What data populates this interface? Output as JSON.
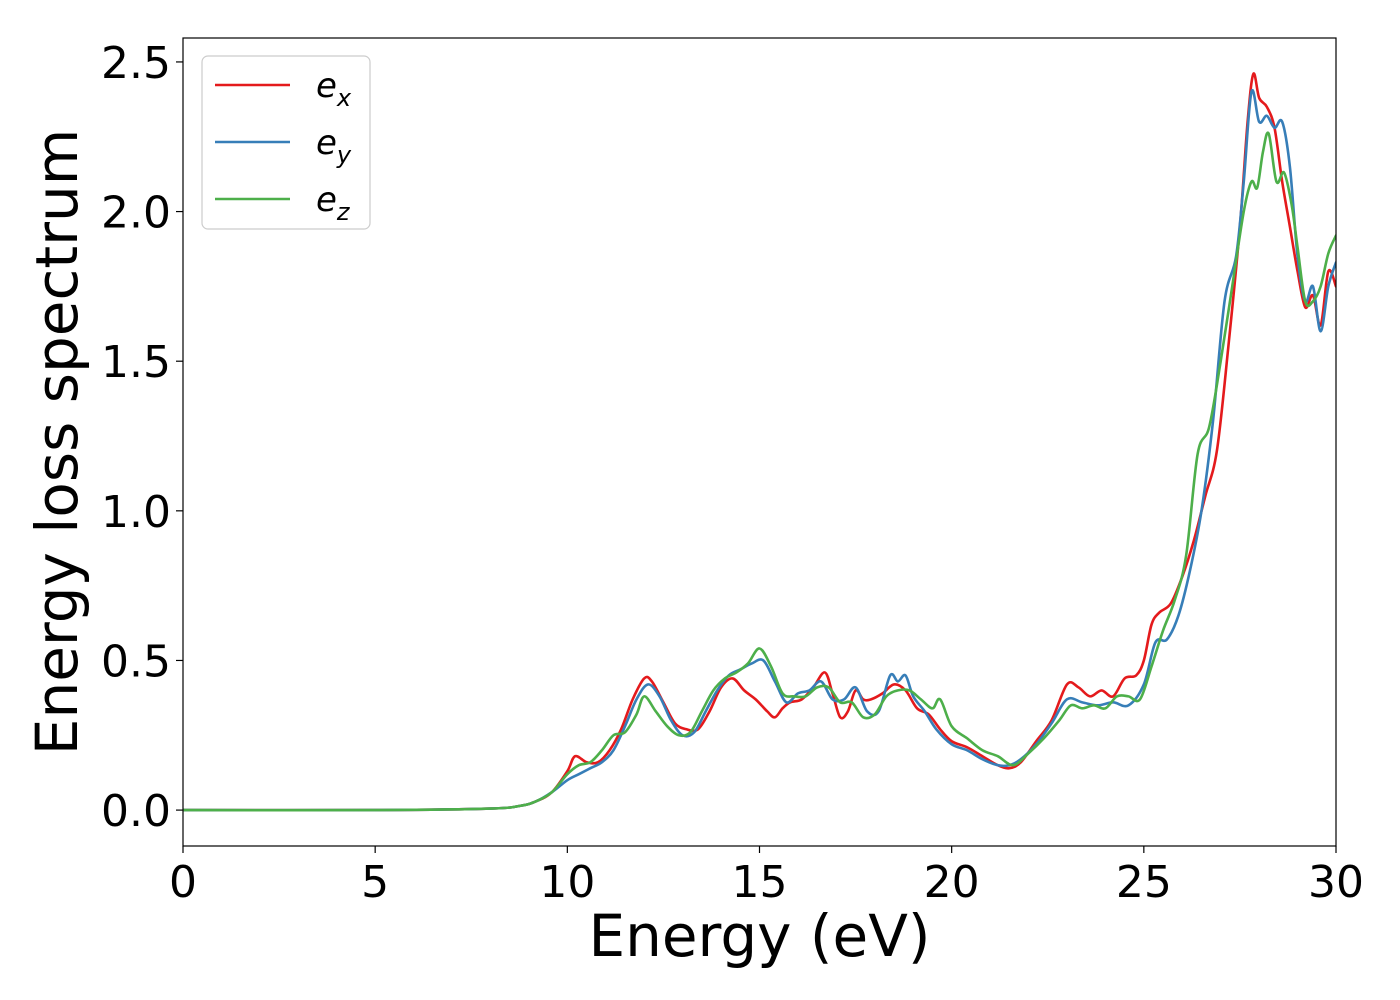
{
  "chart_data": {
    "type": "line",
    "title": "",
    "xlabel": "Energy (eV)",
    "ylabel": "Energy loss spectrum",
    "xlim": [
      0,
      30
    ],
    "ylim": [
      -0.12,
      2.58
    ],
    "xticks": [
      0,
      5,
      10,
      15,
      20,
      25,
      30
    ],
    "xtick_labels": [
      "0",
      "5",
      "10",
      "15",
      "20",
      "25",
      "30"
    ],
    "yticks": [
      0.0,
      0.5,
      1.0,
      1.5,
      2.0,
      2.5
    ],
    "ytick_labels": [
      "0.0",
      "0.5",
      "1.0",
      "1.5",
      "2.0",
      "2.5"
    ],
    "grid": false,
    "legend_position": "top-left",
    "series": [
      {
        "name": "e_x",
        "legend_base": "e",
        "legend_sub": "x",
        "color": "#e41a1c",
        "x": [
          0,
          5,
          8,
          8.8,
          9.2,
          9.6,
          10.0,
          10.2,
          10.5,
          10.8,
          11.1,
          11.4,
          11.7,
          12.0,
          12.2,
          12.5,
          12.8,
          13.1,
          13.4,
          13.7,
          14.0,
          14.3,
          14.6,
          14.9,
          15.2,
          15.4,
          15.6,
          15.8,
          16.1,
          16.4,
          16.7,
          16.9,
          17.1,
          17.3,
          17.5,
          17.7,
          17.9,
          18.2,
          18.5,
          18.8,
          19.1,
          19.4,
          19.7,
          20.0,
          20.4,
          20.8,
          21.2,
          21.5,
          21.8,
          22.2,
          22.6,
          23.0,
          23.3,
          23.6,
          23.9,
          24.2,
          24.5,
          24.8,
          25.0,
          25.2,
          25.4,
          25.7,
          26.0,
          26.3,
          26.6,
          26.9,
          27.2,
          27.5,
          27.7,
          27.85,
          28.0,
          28.2,
          28.4,
          28.6,
          28.8,
          29.0,
          29.2,
          29.4,
          29.6,
          29.8,
          30.0
        ],
        "y": [
          0.0,
          0.0,
          0.005,
          0.015,
          0.03,
          0.06,
          0.13,
          0.18,
          0.16,
          0.16,
          0.2,
          0.27,
          0.37,
          0.44,
          0.43,
          0.36,
          0.29,
          0.27,
          0.27,
          0.33,
          0.41,
          0.44,
          0.4,
          0.37,
          0.33,
          0.31,
          0.34,
          0.36,
          0.37,
          0.41,
          0.46,
          0.39,
          0.31,
          0.33,
          0.4,
          0.37,
          0.37,
          0.39,
          0.42,
          0.4,
          0.34,
          0.32,
          0.27,
          0.23,
          0.21,
          0.18,
          0.15,
          0.14,
          0.16,
          0.23,
          0.3,
          0.42,
          0.41,
          0.38,
          0.4,
          0.38,
          0.44,
          0.45,
          0.5,
          0.62,
          0.66,
          0.69,
          0.78,
          0.9,
          1.05,
          1.2,
          1.55,
          1.95,
          2.3,
          2.46,
          2.38,
          2.35,
          2.28,
          2.1,
          1.95,
          1.8,
          1.68,
          1.72,
          1.62,
          1.8,
          1.75
        ]
      },
      {
        "name": "e_y",
        "legend_base": "e",
        "legend_sub": "y",
        "color": "#377eb8",
        "x": [
          0,
          5,
          8,
          8.8,
          9.2,
          9.6,
          10.0,
          10.3,
          10.6,
          10.9,
          11.2,
          11.5,
          11.8,
          12.1,
          12.4,
          12.7,
          13.0,
          13.3,
          13.6,
          13.9,
          14.2,
          14.5,
          14.8,
          15.1,
          15.4,
          15.7,
          16.0,
          16.3,
          16.6,
          16.9,
          17.2,
          17.5,
          17.8,
          18.1,
          18.4,
          18.6,
          18.8,
          19.0,
          19.3,
          19.6,
          20.0,
          20.4,
          20.8,
          21.2,
          21.5,
          21.8,
          22.2,
          22.6,
          23.0,
          23.4,
          23.8,
          24.2,
          24.6,
          25.0,
          25.3,
          25.6,
          25.9,
          26.2,
          26.5,
          26.8,
          27.1,
          27.4,
          27.6,
          27.8,
          28.0,
          28.2,
          28.4,
          28.6,
          28.8,
          29.0,
          29.2,
          29.4,
          29.6,
          29.8,
          30.0
        ],
        "y": [
          0.0,
          0.0,
          0.005,
          0.015,
          0.03,
          0.06,
          0.1,
          0.12,
          0.14,
          0.16,
          0.2,
          0.28,
          0.37,
          0.42,
          0.38,
          0.3,
          0.25,
          0.26,
          0.33,
          0.4,
          0.45,
          0.47,
          0.49,
          0.5,
          0.43,
          0.36,
          0.39,
          0.4,
          0.43,
          0.37,
          0.37,
          0.41,
          0.33,
          0.33,
          0.45,
          0.43,
          0.45,
          0.38,
          0.33,
          0.27,
          0.22,
          0.2,
          0.17,
          0.15,
          0.15,
          0.17,
          0.22,
          0.29,
          0.37,
          0.36,
          0.35,
          0.36,
          0.35,
          0.42,
          0.56,
          0.57,
          0.65,
          0.8,
          1.0,
          1.3,
          1.7,
          1.85,
          2.1,
          2.4,
          2.3,
          2.32,
          2.28,
          2.3,
          2.15,
          1.85,
          1.7,
          1.75,
          1.6,
          1.75,
          1.83
        ]
      },
      {
        "name": "e_z",
        "legend_base": "e",
        "legend_sub": "z",
        "color": "#4daf4a",
        "x": [
          0,
          5,
          8,
          8.8,
          9.2,
          9.6,
          10.0,
          10.3,
          10.6,
          10.9,
          11.2,
          11.5,
          11.8,
          12.0,
          12.3,
          12.6,
          12.9,
          13.2,
          13.5,
          13.8,
          14.1,
          14.4,
          14.7,
          15.0,
          15.3,
          15.6,
          15.9,
          16.2,
          16.5,
          16.8,
          17.1,
          17.4,
          17.7,
          18.0,
          18.3,
          18.6,
          18.9,
          19.2,
          19.5,
          19.7,
          20.0,
          20.4,
          20.8,
          21.2,
          21.6,
          22.0,
          22.4,
          22.8,
          23.1,
          23.4,
          23.7,
          24.0,
          24.3,
          24.6,
          24.9,
          25.2,
          25.5,
          25.8,
          26.1,
          26.4,
          26.7,
          27.0,
          27.3,
          27.6,
          27.8,
          27.95,
          28.1,
          28.25,
          28.45,
          28.65,
          28.85,
          29.0,
          29.2,
          29.4,
          29.6,
          29.8,
          30.0
        ],
        "y": [
          0.0,
          0.0,
          0.005,
          0.015,
          0.03,
          0.06,
          0.12,
          0.15,
          0.16,
          0.2,
          0.25,
          0.26,
          0.32,
          0.38,
          0.33,
          0.28,
          0.25,
          0.26,
          0.33,
          0.4,
          0.44,
          0.46,
          0.49,
          0.54,
          0.48,
          0.39,
          0.38,
          0.38,
          0.41,
          0.41,
          0.36,
          0.36,
          0.31,
          0.32,
          0.38,
          0.4,
          0.4,
          0.37,
          0.34,
          0.37,
          0.28,
          0.24,
          0.2,
          0.18,
          0.15,
          0.19,
          0.24,
          0.3,
          0.35,
          0.34,
          0.35,
          0.34,
          0.38,
          0.38,
          0.37,
          0.48,
          0.6,
          0.7,
          0.85,
          1.19,
          1.28,
          1.5,
          1.75,
          2.0,
          2.1,
          2.08,
          2.2,
          2.26,
          2.1,
          2.13,
          2.02,
          1.88,
          1.7,
          1.7,
          1.75,
          1.86,
          1.92
        ]
      }
    ]
  }
}
